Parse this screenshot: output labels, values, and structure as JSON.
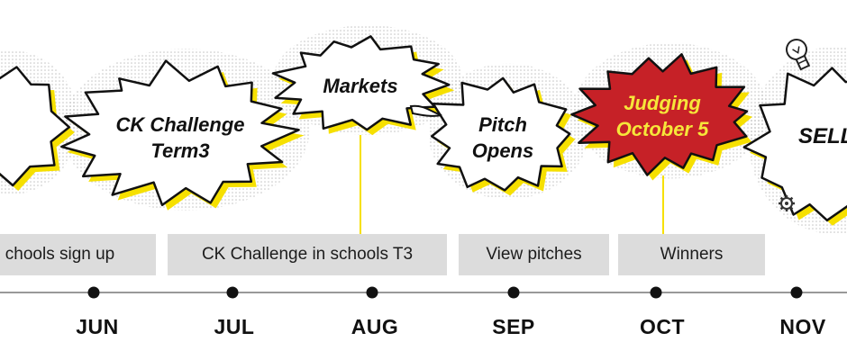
{
  "colors": {
    "yellow": "#f6e000",
    "judging_fill": "#c62127",
    "judging_text": "#f6e63a",
    "bar_grey": "#dcdcdc",
    "timeline": "#999999"
  },
  "icons": [
    "lightbulb-icon",
    "gear-icon"
  ],
  "timeline": {
    "months": [
      "JUN",
      "JUL",
      "AUG",
      "SEP",
      "OCT",
      "NOV"
    ],
    "bars": [
      "chools sign up",
      "CK Challenge in schools T3",
      "View pitches",
      "Winners"
    ]
  },
  "bursts": {
    "ck_challenge": "CK Challenge\nTerm3",
    "markets": "Markets",
    "pitch": "Pitch\nOpens",
    "judging": "Judging\nOctober 5",
    "sell": "SELL"
  }
}
